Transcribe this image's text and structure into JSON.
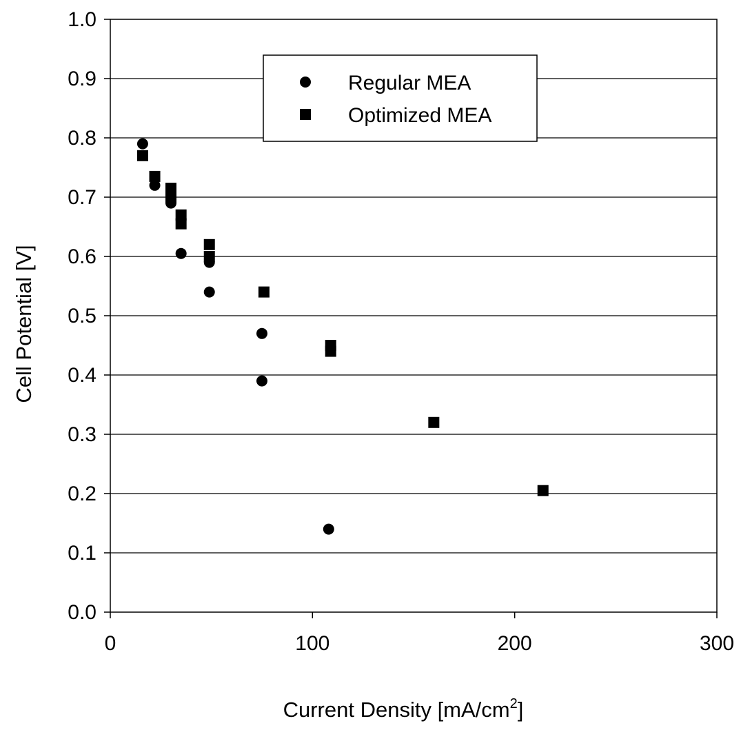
{
  "chart_data": {
    "type": "scatter",
    "title": "",
    "xlabel": "Current Density [mA/cm",
    "xlabel_superscript": "2",
    "xlabel_suffix": "]",
    "ylabel": "Cell Potential [V]",
    "xlim": [
      0,
      300
    ],
    "ylim": [
      0.0,
      1.0
    ],
    "x_ticks": [
      0,
      100,
      200,
      300
    ],
    "x_tick_labels": [
      "0",
      "100",
      "200",
      "300"
    ],
    "y_ticks": [
      0.0,
      0.1,
      0.2,
      0.3,
      0.4,
      0.5,
      0.6,
      0.7,
      0.8,
      0.9,
      1.0
    ],
    "y_tick_labels": [
      "0.0",
      "0.1",
      "0.2",
      "0.3",
      "0.4",
      "0.5",
      "0.6",
      "0.7",
      "0.8",
      "0.9",
      "1.0"
    ],
    "grid": "horizontal",
    "legend_position": "top-center",
    "series": [
      {
        "name": "Regular MEA",
        "marker": "circle",
        "color": "#000000",
        "points": [
          [
            16,
            0.79
          ],
          [
            22,
            0.72
          ],
          [
            30,
            0.69
          ],
          [
            35,
            0.605
          ],
          [
            49,
            0.59
          ],
          [
            49,
            0.54
          ],
          [
            75,
            0.47
          ],
          [
            75,
            0.39
          ],
          [
            108,
            0.14
          ]
        ]
      },
      {
        "name": "Optimized MEA",
        "marker": "square",
        "color": "#000000",
        "points": [
          [
            16,
            0.77
          ],
          [
            22,
            0.735
          ],
          [
            30,
            0.715
          ],
          [
            30,
            0.7
          ],
          [
            35,
            0.67
          ],
          [
            35,
            0.655
          ],
          [
            49,
            0.62
          ],
          [
            49,
            0.6
          ],
          [
            76,
            0.54
          ],
          [
            109,
            0.45
          ],
          [
            109,
            0.44
          ],
          [
            160,
            0.32
          ],
          [
            214,
            0.205
          ]
        ]
      }
    ]
  }
}
